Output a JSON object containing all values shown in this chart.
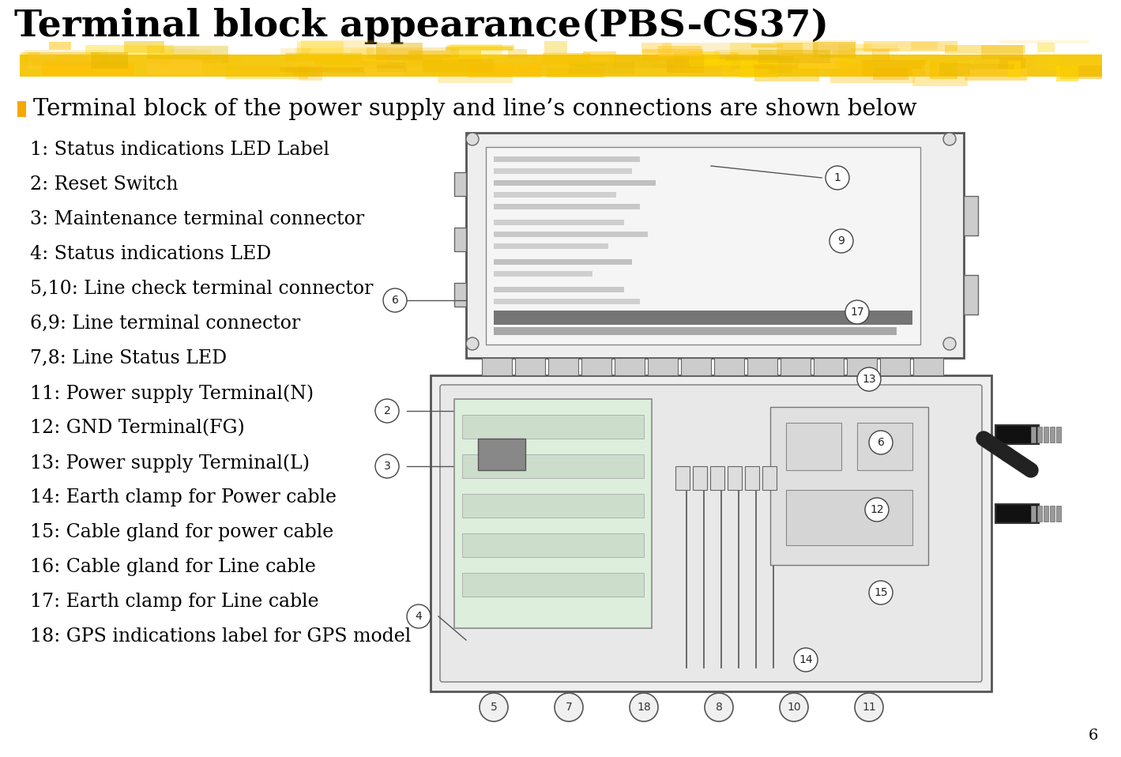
{
  "title": "Terminal block appearance(PBS-CS37)",
  "title_fontsize": 34,
  "background_color": "#ffffff",
  "brush_color": "#F5C400",
  "subtitle": "Terminal block of the power supply and line’s connections are shown below",
  "subtitle_fontsize": 21,
  "bullet_color": "#F5A800",
  "items": [
    "1: Status indications LED Label",
    "2: Reset Switch",
    "3: Maintenance terminal connector",
    "4: Status indications LED",
    "5,10: Line check terminal connector",
    "6,9: Line terminal connector",
    "7,8: Line Status LED",
    "11: Power supply Terminal(N)",
    "12: GND Terminal(FG)",
    "13: Power supply Terminal(L)",
    "14: Earth clamp for Power cable",
    "15: Cable gland for power cable",
    "16: Cable gland for Line cable",
    "17: Earth clamp for Line cable",
    "18: GPS indications label for GPS model"
  ],
  "items_fontsize": 17,
  "page_number": "6"
}
